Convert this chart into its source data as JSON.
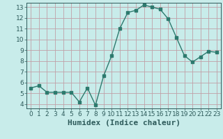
{
  "x": [
    0,
    1,
    2,
    3,
    4,
    5,
    6,
    7,
    8,
    9,
    10,
    11,
    12,
    13,
    14,
    15,
    16,
    17,
    18,
    19,
    20,
    21,
    22,
    23
  ],
  "y": [
    5.5,
    5.7,
    5.1,
    5.1,
    5.1,
    5.1,
    4.2,
    5.5,
    3.9,
    6.6,
    8.5,
    11.0,
    12.5,
    12.7,
    13.2,
    13.0,
    12.8,
    11.9,
    10.2,
    8.5,
    7.9,
    8.4,
    8.9,
    8.8
  ],
  "line_color": "#2d7a6e",
  "marker": "s",
  "marker_size": 2.5,
  "bg_color": "#c8ecea",
  "grid_color": "#c0a0a8",
  "xlabel": "Humidex (Indice chaleur)",
  "xlim": [
    -0.5,
    23.5
  ],
  "ylim": [
    3.6,
    13.4
  ],
  "yticks": [
    4,
    5,
    6,
    7,
    8,
    9,
    10,
    11,
    12,
    13
  ],
  "xticks": [
    0,
    1,
    2,
    3,
    4,
    5,
    6,
    7,
    8,
    9,
    10,
    11,
    12,
    13,
    14,
    15,
    16,
    17,
    18,
    19,
    20,
    21,
    22,
    23
  ],
  "xlabel_fontsize": 8,
  "tick_fontsize": 6.5,
  "tick_color": "#2d5a5a",
  "line_width": 1.0
}
